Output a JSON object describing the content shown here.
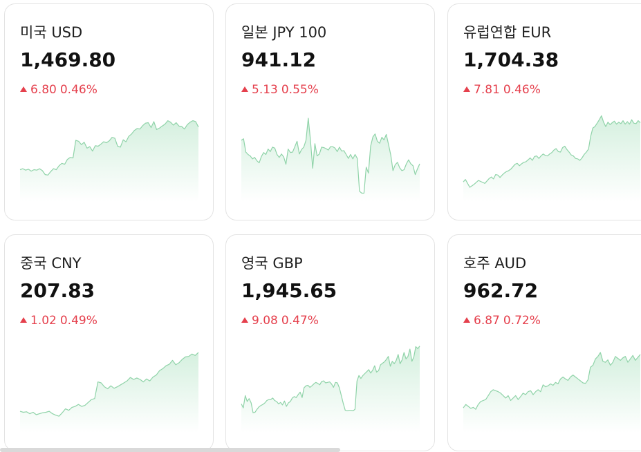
{
  "cards": [
    {
      "title": "미국 USD",
      "rate": "1,469.80",
      "change": "6.80",
      "pct": "0.46%",
      "chart_data": {
        "type": "area",
        "values": [
          60,
          62,
          59,
          61,
          57,
          60,
          59,
          62,
          58,
          50,
          49,
          56,
          62,
          60,
          68,
          73,
          71,
          81,
          85,
          84,
          120,
          118,
          111,
          116,
          104,
          107,
          98,
          109,
          108,
          112,
          117,
          115,
          119,
          126,
          124,
          108,
          106,
          121,
          117,
          128,
          133,
          140,
          144,
          143,
          150,
          155,
          156,
          146,
          158,
          142,
          145,
          149,
          153,
          160,
          157,
          151,
          156,
          149,
          148,
          143,
          152,
          157,
          160,
          158,
          147
        ]
      }
    },
    {
      "title": "일본 JPY 100",
      "rate": "941.12",
      "change": "5.13",
      "pct": "0.55%",
      "chart_data": {
        "type": "area",
        "values": [
          120,
          123,
          96,
          91,
          88,
          82,
          85,
          78,
          74,
          87,
          95,
          91,
          102,
          97,
          106,
          104,
          91,
          85,
          92,
          86,
          71,
          102,
          95,
          96,
          107,
          118,
          92,
          101,
          106,
          120,
          165,
          120,
          63,
          113,
          88,
          92,
          106,
          105,
          103,
          100,
          107,
          107,
          104,
          97,
          106,
          98,
          99,
          91,
          83,
          91,
          82,
          91,
          83,
          16,
          12,
          12,
          65,
          53,
          108,
          127,
          133,
          118,
          114,
          126,
          121,
          132,
          112,
          90,
          58,
          70,
          75,
          64,
          58,
          60,
          72,
          80,
          72,
          68,
          50,
          62,
          72
        ]
      }
    },
    {
      "title": "유럽연합 EUR",
      "rate": "1,704.38",
      "change": "7.81",
      "pct": "0.46%",
      "chart_data": {
        "type": "area",
        "values": [
          35,
          40,
          32,
          24,
          27,
          30,
          34,
          38,
          36,
          34,
          32,
          37,
          42,
          45,
          41,
          50,
          49,
          44,
          49,
          53,
          56,
          58,
          61,
          66,
          71,
          73,
          68,
          72,
          75,
          76,
          80,
          84,
          79,
          87,
          88,
          83,
          88,
          92,
          89,
          88,
          92,
          95,
          100,
          103,
          97,
          96,
          105,
          108,
          101,
          96,
          90,
          88,
          83,
          82,
          79,
          84,
          91,
          96,
          102,
          128,
          145,
          148,
          155,
          162,
          170,
          157,
          148,
          157,
          152,
          156,
          159,
          153,
          157,
          154,
          160,
          153,
          158,
          153,
          162,
          155,
          154,
          160,
          156
        ]
      }
    },
    {
      "title": "중국 CNY",
      "rate": "207.83",
      "change": "1.02",
      "pct": "0.49%",
      "chart_data": {
        "type": "area",
        "values": [
          38,
          36,
          37,
          33,
          36,
          31,
          33,
          35,
          36,
          38,
          33,
          30,
          28,
          35,
          43,
          40,
          46,
          48,
          52,
          48,
          50,
          56,
          62,
          64,
          98,
          96,
          88,
          84,
          90,
          85,
          88,
          92,
          96,
          100,
          107,
          103,
          106,
          103,
          98,
          104,
          100,
          108,
          112,
          121,
          125,
          131,
          134,
          142,
          133,
          137,
          144,
          149,
          150,
          155,
          152,
          158
        ]
      }
    },
    {
      "title": "영국 GBP",
      "rate": "1,945.65",
      "change": "9.08",
      "pct": "0.47%",
      "chart_data": {
        "type": "area",
        "values": [
          53,
          45,
          70,
          58,
          64,
          55,
          35,
          36,
          42,
          47,
          50,
          52,
          55,
          60,
          62,
          62,
          65,
          60,
          58,
          53,
          56,
          51,
          59,
          48,
          55,
          58,
          65,
          68,
          66,
          72,
          77,
          66,
          86,
          90,
          91,
          87,
          90,
          94,
          97,
          95,
          92,
          99,
          100,
          96,
          97,
          98,
          94,
          87,
          97,
          96,
          86,
          70,
          54,
          40,
          39,
          40,
          40,
          39,
          42,
          100,
          111,
          105,
          111,
          115,
          119,
          123,
          116,
          122,
          131,
          118,
          121,
          133,
          136,
          139,
          144,
          150,
          130,
          140,
          135,
          142,
          154,
          135,
          143,
          158,
          145,
          150,
          165,
          140,
          149,
          170,
          166,
          171
        ]
      }
    },
    {
      "title": "호주 AUD",
      "rate": "962.72",
      "change": "6.87",
      "pct": "0.72%",
      "chart_data": {
        "type": "area",
        "values": [
          45,
          52,
          48,
          44,
          46,
          42,
          52,
          58,
          60,
          62,
          70,
          78,
          82,
          80,
          78,
          75,
          70,
          65,
          70,
          60,
          65,
          70,
          62,
          68,
          75,
          72,
          78,
          80,
          72,
          78,
          82,
          78,
          92,
          88,
          90,
          94,
          91,
          97,
          94,
          104,
          108,
          104,
          101,
          108,
          112,
          108,
          104,
          100,
          96,
          95,
          102,
          128,
          132,
          145,
          150,
          158,
          140,
          138,
          143,
          132,
          138,
          150,
          146,
          142,
          147,
          150,
          138,
          145,
          152,
          142,
          148,
          154
        ]
      }
    }
  ],
  "colors": {
    "line": "#8fd3a8",
    "fill_top": "#d5f0df",
    "fill_bottom": "#ffffff",
    "up": "#e5404d"
  }
}
